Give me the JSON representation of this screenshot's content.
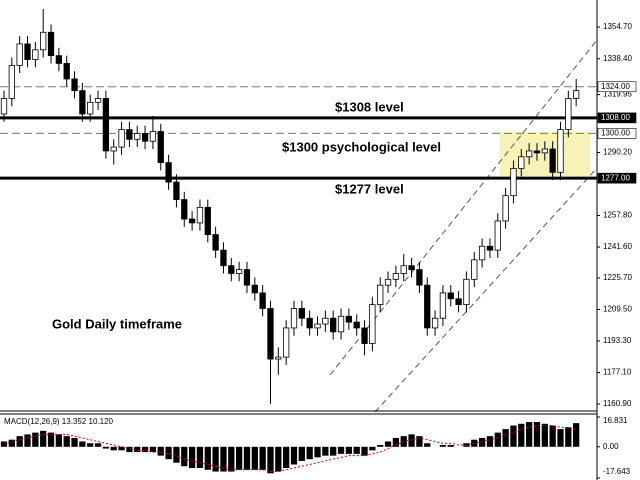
{
  "chart_data": {
    "type": "candlestick",
    "open": [
      1310,
      1318,
      1335,
      1346,
      1338,
      1343,
      1352,
      1340,
      1336,
      1328,
      1322,
      1310,
      1316,
      1318,
      1291,
      1293,
      1302,
      1297,
      1300,
      1296,
      1301,
      1285,
      1275,
      1266,
      1256,
      1254,
      1262,
      1248,
      1240,
      1232,
      1228,
      1230,
      1222,
      1218,
      1210,
      1184,
      1185,
      1200,
      1210,
      1205,
      1200,
      1202,
      1205,
      1198,
      1206,
      1203,
      1200,
      1192,
      1212,
      1222,
      1225,
      1228,
      1232,
      1230,
      1222,
      1200,
      1205,
      1218,
      1215,
      1212,
      1225,
      1235,
      1242,
      1240,
      1255,
      1268,
      1282,
      1288,
      1291,
      1290,
      1292,
      1280,
      1302,
      1318
    ],
    "high": [
      1322,
      1339,
      1350,
      1350,
      1347,
      1364,
      1356,
      1344,
      1340,
      1332,
      1326,
      1320,
      1322,
      1322,
      1297,
      1306,
      1306,
      1304,
      1304,
      1309,
      1305,
      1289,
      1279,
      1270,
      1260,
      1266,
      1266,
      1252,
      1244,
      1236,
      1234,
      1234,
      1226,
      1222,
      1214,
      1190,
      1204,
      1214,
      1214,
      1209,
      1206,
      1209,
      1209,
      1210,
      1210,
      1207,
      1204,
      1216,
      1226,
      1229,
      1232,
      1238,
      1236,
      1234,
      1226,
      1209,
      1222,
      1222,
      1219,
      1229,
      1239,
      1246,
      1246,
      1259,
      1272,
      1286,
      1292,
      1295,
      1295,
      1296,
      1296,
      1306,
      1322,
      1328
    ],
    "low": [
      1306,
      1314,
      1331,
      1334,
      1334,
      1339,
      1336,
      1332,
      1324,
      1318,
      1306,
      1306,
      1312,
      1287,
      1284,
      1289,
      1293,
      1293,
      1292,
      1292,
      1281,
      1271,
      1262,
      1252,
      1250,
      1250,
      1244,
      1236,
      1228,
      1224,
      1224,
      1218,
      1214,
      1206,
      1161,
      1176,
      1181,
      1196,
      1201,
      1196,
      1196,
      1198,
      1194,
      1194,
      1199,
      1196,
      1186,
      1188,
      1208,
      1218,
      1221,
      1224,
      1226,
      1218,
      1196,
      1196,
      1201,
      1211,
      1208,
      1208,
      1221,
      1231,
      1236,
      1236,
      1251,
      1264,
      1278,
      1284,
      1286,
      1286,
      1276,
      1276,
      1298,
      1314
    ],
    "close": [
      1318,
      1335,
      1346,
      1338,
      1343,
      1352,
      1340,
      1336,
      1328,
      1322,
      1310,
      1316,
      1318,
      1291,
      1293,
      1302,
      1297,
      1300,
      1296,
      1301,
      1285,
      1275,
      1266,
      1256,
      1254,
      1262,
      1248,
      1240,
      1232,
      1228,
      1230,
      1222,
      1218,
      1210,
      1184,
      1185,
      1200,
      1210,
      1205,
      1200,
      1202,
      1205,
      1198,
      1206,
      1203,
      1200,
      1192,
      1212,
      1222,
      1225,
      1228,
      1232,
      1230,
      1222,
      1200,
      1205,
      1218,
      1215,
      1212,
      1225,
      1235,
      1242,
      1240,
      1255,
      1268,
      1282,
      1288,
      1291,
      1290,
      1292,
      1280,
      1302,
      1318,
      1322
    ],
    "ylim": [
      1157.3,
      1368.6
    ],
    "yticks": [
      {
        "value": 1354.7,
        "label": "1354.70"
      },
      {
        "value": 1338.4,
        "label": "1338.40"
      },
      1319.95,
      {
        "value": 1290.2,
        "label": "1290.20"
      },
      {
        "value": 1257.8,
        "label": "1257.80"
      },
      {
        "value": 1241.6,
        "label": "1241.60"
      },
      {
        "value": 1225.7,
        "label": "1225.70"
      },
      {
        "value": 1209.5,
        "label": "1209.50"
      },
      {
        "value": 1193.3,
        "label": "1193.30"
      },
      {
        "value": 1177.1,
        "label": "1177.10"
      },
      {
        "value": 1160.9,
        "label": "1160.90"
      }
    ],
    "levels": [
      {
        "value": 1324,
        "label": "1324.00",
        "style": "dashed"
      },
      {
        "value": 1308,
        "label": "1308.00",
        "style": "solid"
      },
      {
        "value": 1300,
        "label": "1300.00",
        "style": "dashed"
      },
      {
        "value": 1277,
        "label": "1277.00",
        "style": "solid"
      }
    ],
    "annotations": [
      "$1308 level",
      "$1300 psychological level",
      "$1277 level",
      "Gold Daily timeframe"
    ],
    "macd": {
      "title": "MACD(12,26,9) 13.352 10.120",
      "ylim": [
        -17.643,
        16.831
      ],
      "yticks": [
        16.831,
        {
          "value": 0,
          "label": "0.00"
        },
        -17.643
      ],
      "histogram": [
        3,
        4,
        6,
        7,
        8,
        9,
        8,
        7,
        6,
        5,
        3,
        2,
        2,
        -1,
        -2,
        -2,
        -3,
        -3,
        -3,
        -3,
        -5,
        -7,
        -9,
        -11,
        -12,
        -12,
        -13,
        -14,
        -14,
        -14,
        -13,
        -13,
        -13,
        -13,
        -15,
        -14,
        -12,
        -10,
        -8,
        -7,
        -6,
        -5,
        -5,
        -4,
        -4,
        -4,
        -5,
        -2,
        1,
        3,
        5,
        6,
        7,
        6,
        2,
        0,
        1,
        1,
        0,
        2,
        4,
        5,
        6,
        8,
        10,
        12,
        13,
        14,
        14,
        13,
        12,
        10,
        11,
        13.352
      ],
      "signal": [
        2,
        3,
        4,
        5,
        6,
        7,
        7,
        7,
        7,
        6,
        5,
        4,
        3,
        2,
        1,
        0,
        -1,
        -2,
        -2,
        -3,
        -3,
        -4,
        -5,
        -7,
        -8,
        -9,
        -10,
        -11,
        -12,
        -13,
        -13,
        -13,
        -13,
        -13,
        -14,
        -14,
        -13,
        -12,
        -11,
        -10,
        -9,
        -8,
        -7,
        -6,
        -5,
        -5,
        -5,
        -4,
        -3,
        -1,
        1,
        3,
        4,
        5,
        4,
        3,
        2,
        2,
        1,
        1,
        2,
        3,
        4,
        5,
        7,
        8,
        10,
        11,
        12,
        12,
        12,
        11,
        11,
        10.12
      ]
    }
  }
}
